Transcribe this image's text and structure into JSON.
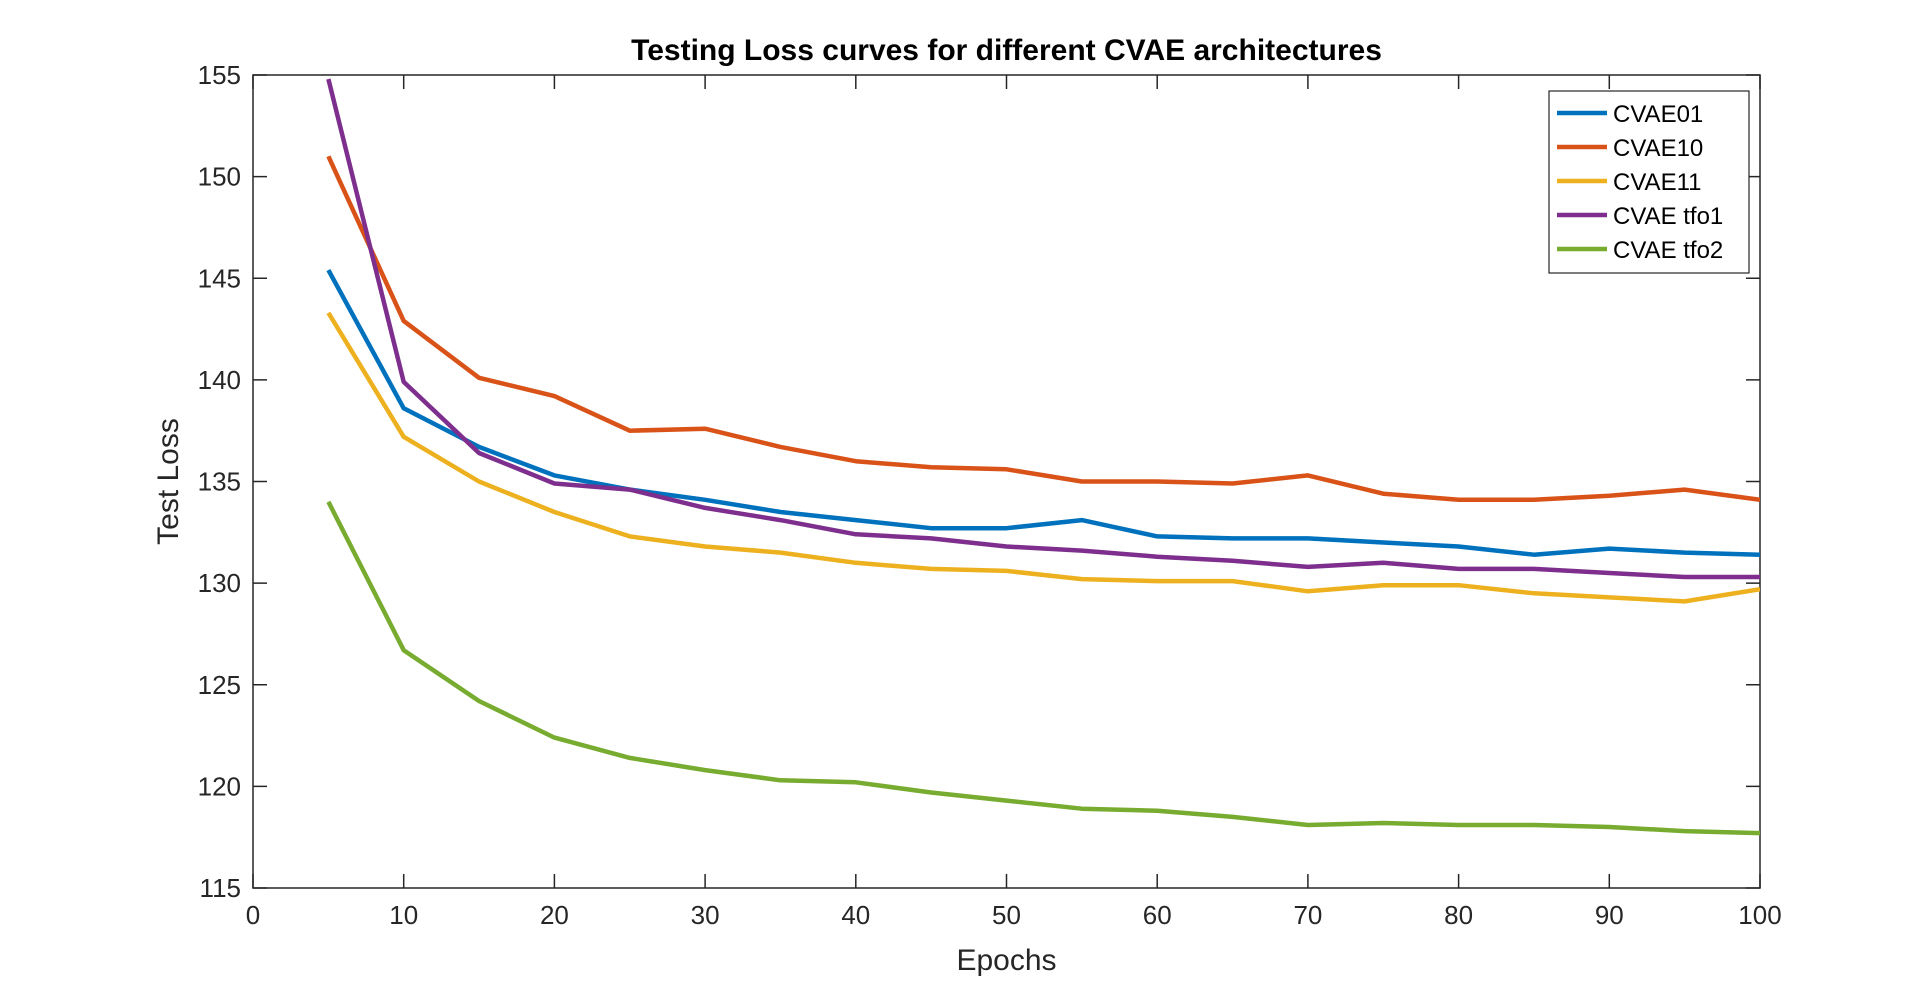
{
  "chart_data": {
    "type": "line",
    "title": "Testing Loss curves for different CVAE architectures",
    "xlabel": "Epochs",
    "ylabel": "Test Loss",
    "xlim": [
      0,
      100
    ],
    "ylim": [
      115,
      155
    ],
    "xticks": [
      0,
      10,
      20,
      30,
      40,
      50,
      60,
      70,
      80,
      90,
      100
    ],
    "yticks": [
      115,
      120,
      125,
      130,
      135,
      140,
      145,
      150,
      155
    ],
    "grid": false,
    "legend_position": "top-right",
    "x": [
      5,
      10,
      15,
      20,
      25,
      30,
      35,
      40,
      45,
      50,
      55,
      60,
      65,
      70,
      75,
      80,
      85,
      90,
      95,
      100
    ],
    "series": [
      {
        "name": "CVAE01",
        "color": "#0072BD",
        "values": [
          145.4,
          138.6,
          136.7,
          135.3,
          134.6,
          134.1,
          133.5,
          133.1,
          132.7,
          132.7,
          133.1,
          132.3,
          132.2,
          132.2,
          132.0,
          131.8,
          131.4,
          131.7,
          131.5,
          131.4
        ]
      },
      {
        "name": "CVAE10",
        "color": "#D95319",
        "values": [
          151.0,
          142.9,
          140.1,
          139.2,
          137.5,
          137.6,
          136.7,
          136.0,
          135.7,
          135.6,
          135.0,
          135.0,
          134.9,
          135.3,
          134.4,
          134.1,
          134.1,
          134.3,
          134.6,
          134.1
        ]
      },
      {
        "name": "CVAE11",
        "color": "#EDB120",
        "values": [
          143.3,
          137.2,
          135.0,
          133.5,
          132.3,
          131.8,
          131.5,
          131.0,
          130.7,
          130.6,
          130.2,
          130.1,
          130.1,
          129.6,
          129.9,
          129.9,
          129.5,
          129.3,
          129.1,
          129.7
        ]
      },
      {
        "name": "CVAE tfo1",
        "color": "#7E2F8E",
        "values": [
          154.8,
          139.9,
          136.4,
          134.9,
          134.6,
          133.7,
          133.1,
          132.4,
          132.2,
          131.8,
          131.6,
          131.3,
          131.1,
          130.8,
          131.0,
          130.7,
          130.7,
          130.5,
          130.3,
          130.3
        ]
      },
      {
        "name": "CVAE tfo2",
        "color": "#77AC30",
        "values": [
          134.0,
          126.7,
          124.2,
          122.4,
          121.4,
          120.8,
          120.3,
          120.2,
          119.7,
          119.3,
          118.9,
          118.8,
          118.5,
          118.1,
          118.2,
          118.1,
          118.1,
          118.0,
          117.8,
          117.7
        ]
      }
    ]
  }
}
